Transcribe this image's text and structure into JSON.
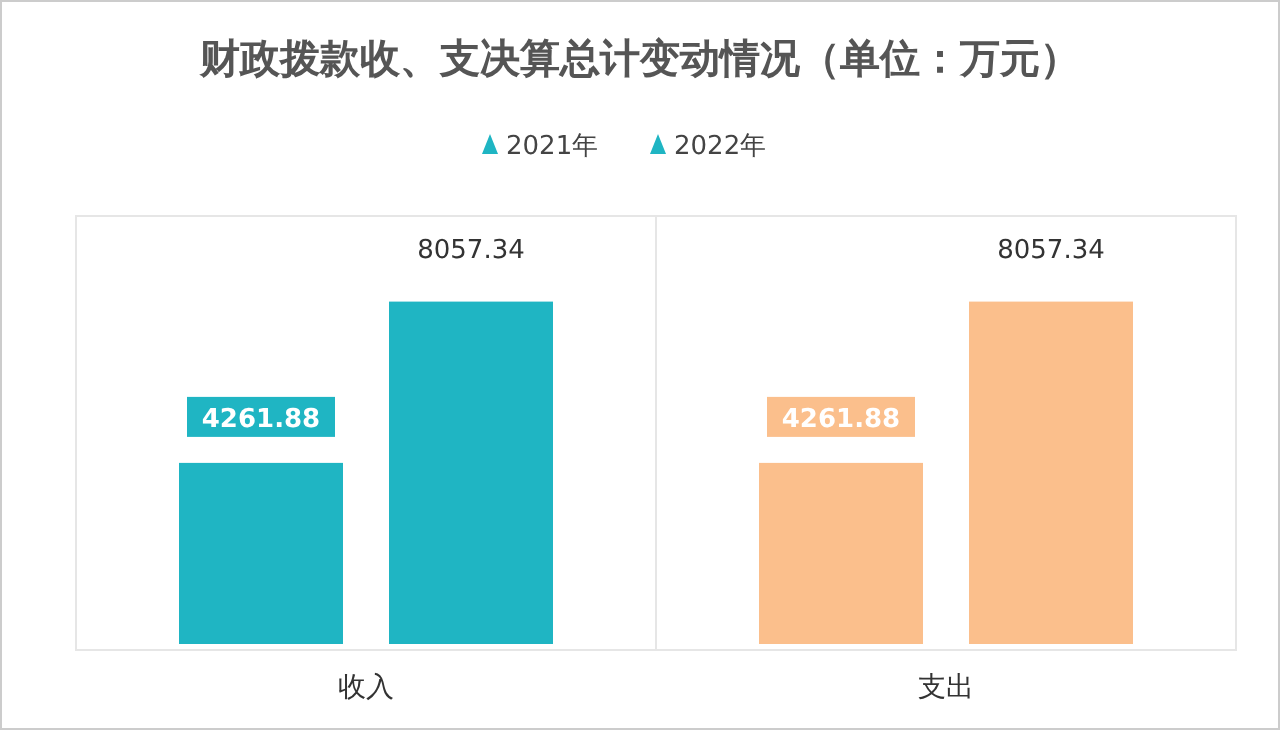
{
  "chart_data": {
    "type": "bar",
    "title": "财政拨款收、支决算总计变动情况（单位：万元）",
    "categories": [
      "收入",
      "支出"
    ],
    "series": [
      {
        "name": "2021年",
        "color": "#1fb5c3",
        "colors": [
          "#1fb5c3",
          "#fbbf8c"
        ],
        "values": [
          4261.88,
          4261.88
        ]
      },
      {
        "name": "2022年",
        "color": "#1fb5c3",
        "colors": [
          "#1fb5c3",
          "#fbbf8c"
        ],
        "values": [
          8057.34,
          8057.34
        ]
      }
    ],
    "data_labels": true,
    "legend": "top",
    "grid": "x"
  }
}
